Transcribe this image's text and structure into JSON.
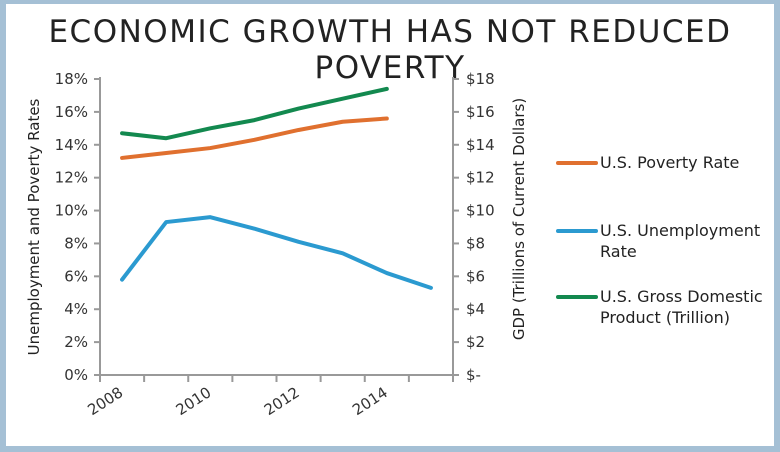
{
  "chart_data": {
    "type": "line",
    "title": "ECONOMIC GROWTH HAS NOT REDUCED POVERTY",
    "x": [
      2008,
      2009,
      2010,
      2011,
      2012,
      2013,
      2014,
      2015
    ],
    "x_tick_labels": [
      "2008",
      "2010",
      "2012",
      "2014"
    ],
    "ylabel": "Unemployment and Poverty Rates",
    "ylabel_right": "GDP (Trillions of Current Dollars)",
    "ylim": [
      0,
      18
    ],
    "ylim_right": [
      0,
      18
    ],
    "y_tick_labels": [
      "0%",
      "2%",
      "4%",
      "6%",
      "8%",
      "10%",
      "12%",
      "14%",
      "16%",
      "18%"
    ],
    "y_tick_labels_right": [
      "$-",
      "$2",
      "$4",
      "$6",
      "$8",
      "$10",
      "$12",
      "$14",
      "$16",
      "$18"
    ],
    "grid": false,
    "legend_position": "right",
    "series": [
      {
        "name": "U.S. Poverty Rate",
        "color": "#e0702f",
        "axis": "left",
        "values": [
          13.2,
          13.5,
          13.8,
          14.3,
          14.9,
          15.4,
          15.6,
          null
        ]
      },
      {
        "name": "U.S. Unemployment Rate",
        "color": "#2b9ad0",
        "axis": "left",
        "values": [
          5.8,
          9.3,
          9.6,
          8.9,
          8.1,
          7.4,
          6.2,
          5.3
        ]
      },
      {
        "name": "U.S. Gross Domestic Product (Trillion)",
        "color": "#13894f",
        "axis": "right",
        "values": [
          14.7,
          14.4,
          15.0,
          15.5,
          16.2,
          16.8,
          17.4,
          null
        ]
      }
    ]
  },
  "legend": {
    "items": [
      {
        "line1": "U.S. Poverty Rate",
        "line2": ""
      },
      {
        "line1": "U.S. Unemployment",
        "line2": "Rate"
      },
      {
        "line1": "U.S. Gross Domestic",
        "line2": "Product (Trillion)"
      }
    ]
  }
}
